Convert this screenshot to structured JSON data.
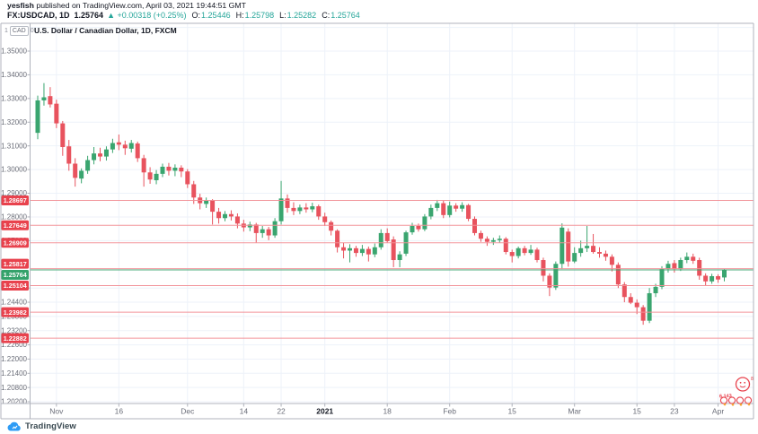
{
  "attribution": {
    "author": "yesfish",
    "rest": " published on TradingView.com, April 03, 2021 19:44:51 GMT"
  },
  "quote_bar": {
    "symbol": "FX:USDCAD, 1D",
    "last_price": "1.25764",
    "change": "▲ +0.00318 (+0.25%)",
    "fields": [
      {
        "label": "O:",
        "value": "1.25446"
      },
      {
        "label": "H:",
        "value": "1.25798"
      },
      {
        "label": "L:",
        "value": "1.25282"
      },
      {
        "label": "C:",
        "value": "1.25764"
      }
    ]
  },
  "chart": {
    "title": "U.S. Dollar / Canadian Dollar, 1D, FXCM",
    "axis_unit": {
      "prefix": "1",
      "currency": "CAD",
      "suffix": "0"
    }
  },
  "footer": {
    "brand": "TradingView"
  },
  "sticker": {
    "small_text": "8",
    "count_text": "6,143"
  },
  "colors": {
    "up": "#3aa56f",
    "down": "#e8535e",
    "level_line": "#f29096",
    "red_badge": "#e8424d",
    "green_badge": "#35a26b",
    "teal": "#26a69a",
    "grid": "#edf2f9",
    "frame": "#b0b3bc",
    "axis_text": "#6a6d78",
    "dark": "#131722",
    "logo_blue": "#2e9cf5",
    "sticker_red": "#e8424d",
    "sticker_orange": "#f5a733"
  },
  "chart_data": {
    "type": "candlestick",
    "title": "U.S. Dollar / Canadian Dollar, 1D, FXCM",
    "symbol": "USDCAD",
    "timeframe": "1D",
    "exchange": "FXCM",
    "grid": true,
    "y_axis_side": "left",
    "y_range_approx": [
      1.2031,
      1.3617
    ],
    "y_ticks": [
      1.35,
      1.34,
      1.33,
      1.32,
      1.31,
      1.3,
      1.29,
      1.28,
      1.27,
      1.25,
      1.244,
      1.238,
      1.232,
      1.226,
      1.22,
      1.214,
      1.208,
      1.202
    ],
    "y_gridlines": [
      1.36,
      1.35,
      1.34,
      1.33,
      1.32,
      1.31,
      1.3,
      1.29,
      1.28,
      1.27,
      1.25,
      1.244,
      1.238,
      1.232,
      1.226,
      1.22,
      1.214,
      1.208,
      1.202
    ],
    "x_ticks": [
      {
        "label": "Nov",
        "bar_index": 3,
        "bold": false
      },
      {
        "label": "16",
        "bar_index": 13,
        "bold": false
      },
      {
        "label": "Dec",
        "bar_index": 24,
        "bold": false
      },
      {
        "label": "14",
        "bar_index": 33,
        "bold": false
      },
      {
        "label": "22",
        "bar_index": 39,
        "bold": false
      },
      {
        "label": "2021",
        "bar_index": 46,
        "bold": true
      },
      {
        "label": "18",
        "bar_index": 56,
        "bold": false
      },
      {
        "label": "Feb",
        "bar_index": 66,
        "bold": false
      },
      {
        "label": "15",
        "bar_index": 76,
        "bold": false
      },
      {
        "label": "Mar",
        "bar_index": 86,
        "bold": false
      },
      {
        "label": "15",
        "bar_index": 96,
        "bold": false
      },
      {
        "label": "23",
        "bar_index": 102,
        "bold": false
      },
      {
        "label": "Apr",
        "bar_index": 109,
        "bold": false
      }
    ],
    "horizontal_lines": [
      1.28697,
      1.27649,
      1.26909,
      1.25817,
      1.25104,
      1.23982,
      1.22882
    ],
    "last_price": 1.25764,
    "candles_ohlc": [
      [
        1.3155,
        1.3312,
        1.3128,
        1.3292
      ],
      [
        1.3292,
        1.3365,
        1.327,
        1.3305
      ],
      [
        1.331,
        1.3348,
        1.3262,
        1.3275
      ],
      [
        1.3278,
        1.3295,
        1.3175,
        1.3195
      ],
      [
        1.3195,
        1.3205,
        1.3058,
        1.3095
      ],
      [
        1.3098,
        1.3125,
        1.2995,
        1.3025
      ],
      [
        1.3025,
        1.3048,
        1.2928,
        1.2965
      ],
      [
        1.2962,
        1.3005,
        1.2942,
        1.2995
      ],
      [
        1.2995,
        1.3058,
        1.2982,
        1.304
      ],
      [
        1.304,
        1.3095,
        1.3022,
        1.3068
      ],
      [
        1.3068,
        1.3092,
        1.3035,
        1.3055
      ],
      [
        1.3055,
        1.3098,
        1.3038,
        1.3085
      ],
      [
        1.3085,
        1.313,
        1.307,
        1.3112
      ],
      [
        1.3115,
        1.3148,
        1.3082,
        1.3105
      ],
      [
        1.3105,
        1.3122,
        1.3062,
        1.309
      ],
      [
        1.3088,
        1.3125,
        1.3072,
        1.3112
      ],
      [
        1.311,
        1.3118,
        1.3032,
        1.3048
      ],
      [
        1.3048,
        1.3062,
        1.2928,
        1.2988
      ],
      [
        1.2988,
        1.301,
        1.294,
        1.2958
      ],
      [
        1.2955,
        1.2998,
        1.2938,
        1.2982
      ],
      [
        1.2982,
        1.3025,
        1.2968,
        1.3012
      ],
      [
        1.3012,
        1.3028,
        1.2975,
        1.2995
      ],
      [
        1.2995,
        1.3022,
        1.2972,
        1.3008
      ],
      [
        1.3008,
        1.3018,
        1.2968,
        1.2992
      ],
      [
        1.2992,
        1.3002,
        1.2922,
        1.2938
      ],
      [
        1.2938,
        1.2952,
        1.2855,
        1.2882
      ],
      [
        1.2882,
        1.2898,
        1.2832,
        1.2858
      ],
      [
        1.2855,
        1.2882,
        1.2838,
        1.2868
      ],
      [
        1.2868,
        1.2875,
        1.2768,
        1.2822
      ],
      [
        1.2822,
        1.2838,
        1.2772,
        1.2795
      ],
      [
        1.2795,
        1.2825,
        1.2782,
        1.2812
      ],
      [
        1.2812,
        1.2828,
        1.2785,
        1.2802
      ],
      [
        1.2802,
        1.2815,
        1.2752,
        1.2772
      ],
      [
        1.2772,
        1.2788,
        1.2738,
        1.2756
      ],
      [
        1.2756,
        1.278,
        1.274,
        1.2768
      ],
      [
        1.2768,
        1.2775,
        1.2692,
        1.2732
      ],
      [
        1.2732,
        1.2762,
        1.2712,
        1.2748
      ],
      [
        1.2748,
        1.2758,
        1.2702,
        1.2722
      ],
      [
        1.2722,
        1.2795,
        1.2712,
        1.2782
      ],
      [
        1.2782,
        1.2952,
        1.2768,
        1.2878
      ],
      [
        1.2878,
        1.2895,
        1.2818,
        1.2838
      ],
      [
        1.2838,
        1.2862,
        1.2808,
        1.2825
      ],
      [
        1.2825,
        1.2852,
        1.2812,
        1.284
      ],
      [
        1.284,
        1.2858,
        1.2818,
        1.2832
      ],
      [
        1.2832,
        1.286,
        1.282,
        1.2845
      ],
      [
        1.2845,
        1.2852,
        1.2788,
        1.2802
      ],
      [
        1.2802,
        1.2818,
        1.2762,
        1.2778
      ],
      [
        1.2778,
        1.2785,
        1.2722,
        1.2742
      ],
      [
        1.2742,
        1.2748,
        1.265,
        1.2672
      ],
      [
        1.2672,
        1.2692,
        1.2625,
        1.2658
      ],
      [
        1.2658,
        1.2685,
        1.2608,
        1.2668
      ],
      [
        1.2668,
        1.2678,
        1.2632,
        1.2648
      ],
      [
        1.2648,
        1.2682,
        1.2635,
        1.2665
      ],
      [
        1.2665,
        1.2675,
        1.2612,
        1.2642
      ],
      [
        1.2642,
        1.2688,
        1.263,
        1.2672
      ],
      [
        1.2672,
        1.2748,
        1.2662,
        1.2732
      ],
      [
        1.2732,
        1.2752,
        1.2692,
        1.2698
      ],
      [
        1.2705,
        1.2718,
        1.2588,
        1.2618
      ],
      [
        1.2618,
        1.2655,
        1.2588,
        1.2642
      ],
      [
        1.2645,
        1.2742,
        1.2635,
        1.2735
      ],
      [
        1.2735,
        1.2775,
        1.2725,
        1.2762
      ],
      [
        1.2762,
        1.2772,
        1.2738,
        1.2748
      ],
      [
        1.2748,
        1.2812,
        1.274,
        1.2802
      ],
      [
        1.2802,
        1.2852,
        1.279,
        1.2838
      ],
      [
        1.2838,
        1.2872,
        1.2825,
        1.2858
      ],
      [
        1.2858,
        1.2868,
        1.2795,
        1.2808
      ],
      [
        1.2808,
        1.2865,
        1.2798,
        1.2848
      ],
      [
        1.2848,
        1.2858,
        1.2822,
        1.2835
      ],
      [
        1.2835,
        1.2862,
        1.2822,
        1.285
      ],
      [
        1.285,
        1.2855,
        1.2782,
        1.2792
      ],
      [
        1.2792,
        1.2802,
        1.2722,
        1.2732
      ],
      [
        1.2732,
        1.2742,
        1.2695,
        1.2708
      ],
      [
        1.2708,
        1.2718,
        1.2678,
        1.2695
      ],
      [
        1.2695,
        1.2712,
        1.2682,
        1.2702
      ],
      [
        1.2702,
        1.2722,
        1.269,
        1.2708
      ],
      [
        1.2708,
        1.2715,
        1.2642,
        1.2652
      ],
      [
        1.2652,
        1.2662,
        1.2608,
        1.2635
      ],
      [
        1.2635,
        1.2675,
        1.2625,
        1.2668
      ],
      [
        1.2668,
        1.2678,
        1.2638,
        1.2648
      ],
      [
        1.2648,
        1.2682,
        1.264,
        1.2662
      ],
      [
        1.2662,
        1.267,
        1.2608,
        1.2618
      ],
      [
        1.2618,
        1.2628,
        1.2528,
        1.2552
      ],
      [
        1.2552,
        1.2562,
        1.2466,
        1.2502
      ],
      [
        1.2502,
        1.2612,
        1.2492,
        1.2602
      ],
      [
        1.2602,
        1.2773,
        1.258,
        1.2755
      ],
      [
        1.2738,
        1.2752,
        1.259,
        1.2612
      ],
      [
        1.2612,
        1.2672,
        1.2605,
        1.2648
      ],
      [
        1.2648,
        1.27,
        1.2632,
        1.2668
      ],
      [
        1.2668,
        1.2762,
        1.2652,
        1.2678
      ],
      [
        1.2678,
        1.2728,
        1.2645,
        1.2652
      ],
      [
        1.2652,
        1.2672,
        1.2628,
        1.2645
      ],
      [
        1.2645,
        1.2658,
        1.2615,
        1.2632
      ],
      [
        1.2632,
        1.2642,
        1.257,
        1.2598
      ],
      [
        1.2598,
        1.2608,
        1.25,
        1.2515
      ],
      [
        1.2515,
        1.2525,
        1.244,
        1.2462
      ],
      [
        1.2462,
        1.2478,
        1.2432,
        1.2438
      ],
      [
        1.2438,
        1.2452,
        1.239,
        1.2419
      ],
      [
        1.2419,
        1.2428,
        1.2345,
        1.2362
      ],
      [
        1.2362,
        1.25,
        1.2352,
        1.2478
      ],
      [
        1.2478,
        1.2518,
        1.2462,
        1.2505
      ],
      [
        1.2505,
        1.2592,
        1.2495,
        1.258
      ],
      [
        1.258,
        1.2615,
        1.2565,
        1.2602
      ],
      [
        1.2605,
        1.2618,
        1.2565,
        1.258
      ],
      [
        1.258,
        1.2628,
        1.2572,
        1.2618
      ],
      [
        1.2618,
        1.265,
        1.2605,
        1.2632
      ],
      [
        1.2632,
        1.2645,
        1.2602,
        1.2615
      ],
      [
        1.2618,
        1.2628,
        1.2535,
        1.2552
      ],
      [
        1.2552,
        1.2562,
        1.2512,
        1.2528
      ],
      [
        1.2528,
        1.256,
        1.2518,
        1.255
      ],
      [
        1.255,
        1.2558,
        1.2522,
        1.2536
      ],
      [
        1.25446,
        1.25798,
        1.25282,
        1.25764
      ]
    ]
  }
}
